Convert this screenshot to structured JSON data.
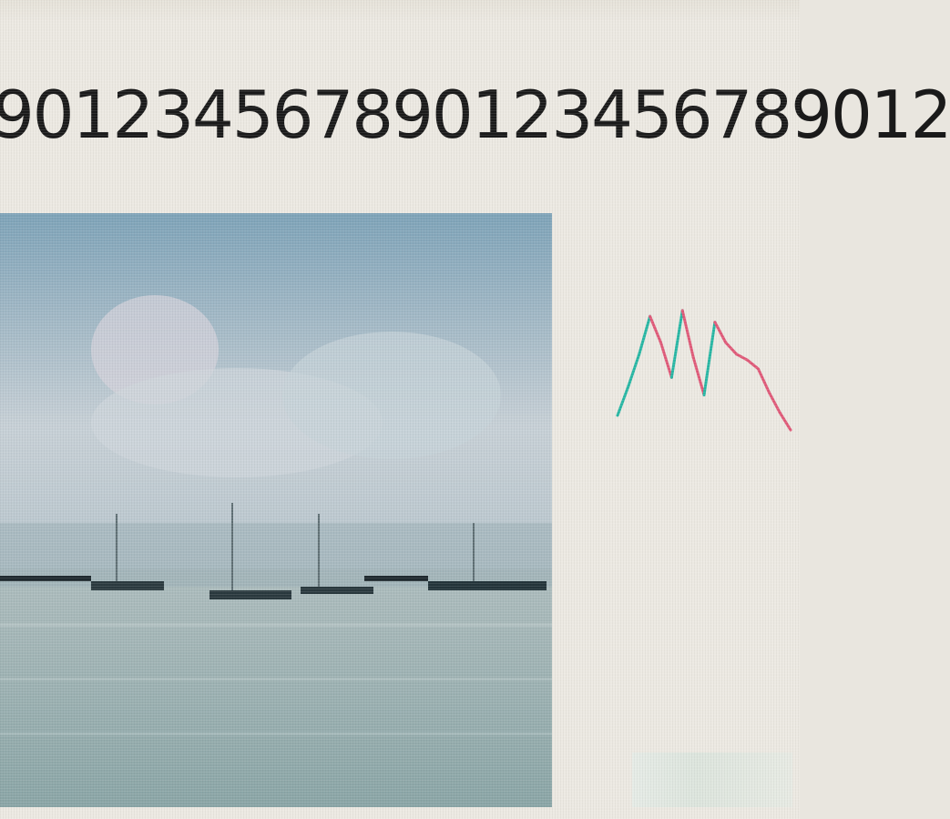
{
  "text_line": "901234567890123456789012",
  "photo": {
    "icon": "harbor-boats-photo"
  },
  "sparkline": {
    "icon": "sparkline-chart-icon",
    "values": [
      20,
      40,
      62,
      88,
      70,
      46,
      92,
      60,
      34,
      84,
      70,
      62,
      58,
      52,
      36,
      22,
      10
    ],
    "colors": {
      "up": "#27b7a4",
      "down": "#e05a79"
    }
  },
  "caption": {
    "text": ""
  },
  "colors": {
    "background": "#ece9e2",
    "text": "#1a1a1a"
  }
}
